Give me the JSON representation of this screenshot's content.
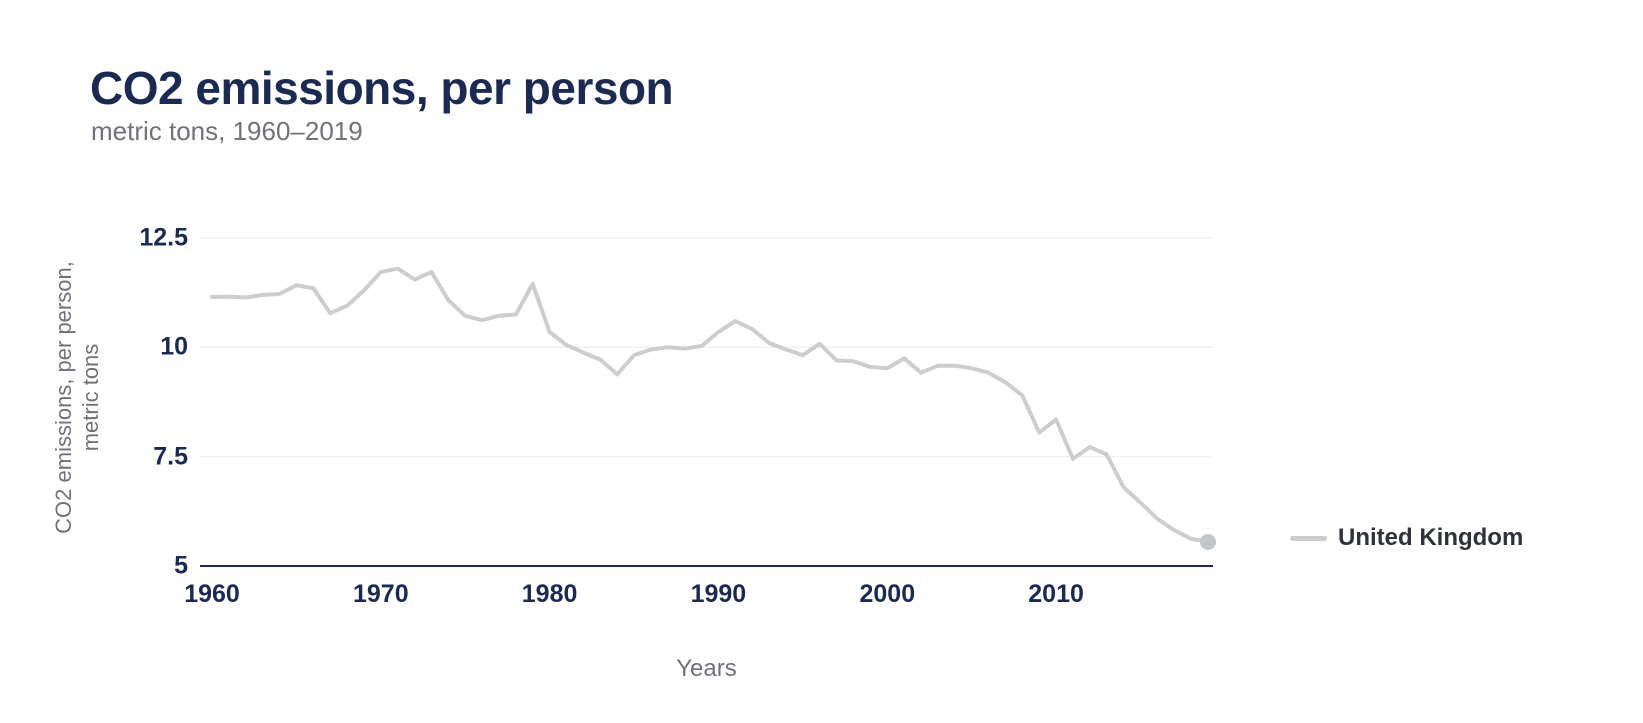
{
  "page": {
    "title": "CO2 emissions, per person",
    "subtitle": "metric tons, 1960–2019"
  },
  "axes": {
    "x_title": "Years",
    "y_title_lines": [
      "CO2 emissions, per person,",
      "metric tons"
    ]
  },
  "legend": {
    "label": "United Kingdom"
  },
  "colors": {
    "background": "#ffffff",
    "title": "#1a2a52",
    "tick": "#1a2a52",
    "muted": "#71717a",
    "grid": "#e9eaec",
    "axis": "#1a2a52",
    "line": "#cccdcf",
    "dot": "#c3c6c8",
    "legend_text": "#2f3338"
  },
  "chart_data": {
    "type": "line",
    "title": "CO2 emissions, per person",
    "subtitle": "metric tons, 1960–2019",
    "xlabel": "Years",
    "ylabel": "CO2 emissions, per person, metric tons",
    "xlim": [
      1960,
      2019
    ],
    "ylim": [
      5,
      12.5
    ],
    "xticks": [
      1960,
      1970,
      1980,
      1990,
      2000,
      2010
    ],
    "xtick_labels": [
      "1960",
      "1970",
      "1980",
      "1990",
      "2000",
      "2010"
    ],
    "yticks": [
      5,
      7.5,
      10,
      12.5
    ],
    "ytick_labels": [
      "5",
      "7.5",
      "10",
      "12.5"
    ],
    "grid": "horizontal-only",
    "legend_position": "right",
    "series": [
      {
        "name": "United Kingdom",
        "x_start": 1960,
        "x_step": 1,
        "end_dot": true,
        "values": [
          11.15,
          11.16,
          11.14,
          11.2,
          11.22,
          11.42,
          11.35,
          10.78,
          10.95,
          11.3,
          11.72,
          11.8,
          11.55,
          11.72,
          11.08,
          10.72,
          10.62,
          10.72,
          10.75,
          11.45,
          10.35,
          10.05,
          9.88,
          9.72,
          9.38,
          9.82,
          9.95,
          10.0,
          9.97,
          10.03,
          10.35,
          10.6,
          10.42,
          10.1,
          9.95,
          9.82,
          10.08,
          9.7,
          9.68,
          9.55,
          9.52,
          9.75,
          9.42,
          9.58,
          9.58,
          9.52,
          9.42,
          9.2,
          8.9,
          8.05,
          8.35,
          7.45,
          7.72,
          7.55,
          6.8,
          6.45,
          6.08,
          5.82,
          5.62,
          5.55
        ]
      }
    ]
  }
}
